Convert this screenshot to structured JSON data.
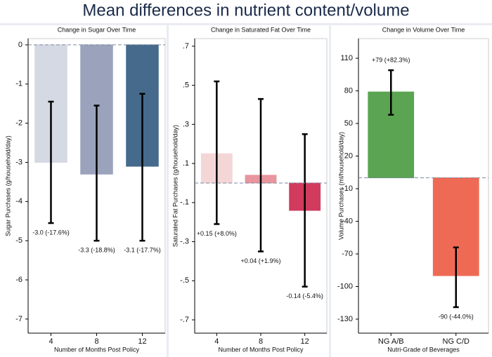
{
  "title": "Mean differences in nutrient content/volume",
  "chart_data": [
    {
      "type": "bar",
      "title": "Change in Sugar Over Time",
      "y_label": "Sugar Purchases (g/household/day)",
      "x_label": "Number of Months Post Policy",
      "categories": [
        "4",
        "8",
        "12"
      ],
      "values": [
        -3.0,
        -3.3,
        -3.1
      ],
      "value_labels": [
        "-3.0 (-17.6%)",
        "-3.3 (-18.8%)",
        "-3.1 (-17.7%)"
      ],
      "ci_low": [
        -4.55,
        -5.0,
        -5.0
      ],
      "ci_high": [
        -1.45,
        -1.55,
        -1.25
      ],
      "colors": [
        "#d4d9e3",
        "#9aa3bb",
        "#456a8c"
      ],
      "ylim": [
        -7.36,
        0.16
      ],
      "yticks": [
        0,
        -1,
        -2,
        -3,
        -4,
        -5,
        -6,
        -7
      ],
      "reference_line": 0
    },
    {
      "type": "bar",
      "title": "Change in Saturated Fat Over Time",
      "y_label": "Saturated Fat Purchases (g/household/day)",
      "x_label": "Number of Months Post Policy",
      "categories": [
        "4",
        "8",
        "12"
      ],
      "values": [
        0.15,
        0.04,
        -0.14
      ],
      "value_labels": [
        "+0.15 (+8.0%)",
        "+0.04 (+1.9%)",
        "-0.14 (-5.4%)"
      ],
      "ci_low": [
        -0.21,
        -0.35,
        -0.53
      ],
      "ci_high": [
        0.52,
        0.43,
        0.25
      ],
      "colors": [
        "#f5d6d6",
        "#e8959d",
        "#d13b5d"
      ],
      "ylim": [
        -0.768,
        0.739
      ],
      "yticks": [
        {
          "value": 0.7,
          "label": ".7"
        },
        {
          "value": 0.5,
          "label": ".5"
        },
        {
          "value": 0.3,
          "label": ".3"
        },
        {
          "value": 0.1,
          "label": ".1"
        },
        {
          "value": -0.1,
          "label": "-.1"
        },
        {
          "value": -0.3,
          "label": "-.3"
        },
        {
          "value": -0.5,
          "label": "-.5"
        },
        {
          "value": -0.7,
          "label": "-.7"
        }
      ],
      "reference_line": 0
    },
    {
      "type": "bar",
      "title": "Change in Volume Over Time",
      "y_label": "Volume Purchases (ml/household/day)",
      "x_label": "Nutri-Grade of Beverages",
      "categories": [
        "NG A/B",
        "NG C/D"
      ],
      "values": [
        79,
        -90
      ],
      "value_labels": [
        "+79 (+82.3%)",
        "-90 (-44.0%)"
      ],
      "ci_low": [
        58,
        -119
      ],
      "ci_high": [
        99,
        -64
      ],
      "colors": [
        "#5ba552",
        "#ef6a55"
      ],
      "ylim": [
        -142.9,
        128.1
      ],
      "yticks": [
        110,
        80,
        50,
        20,
        -10,
        -40,
        -70,
        -100,
        -130
      ],
      "reference_line": 0
    }
  ]
}
